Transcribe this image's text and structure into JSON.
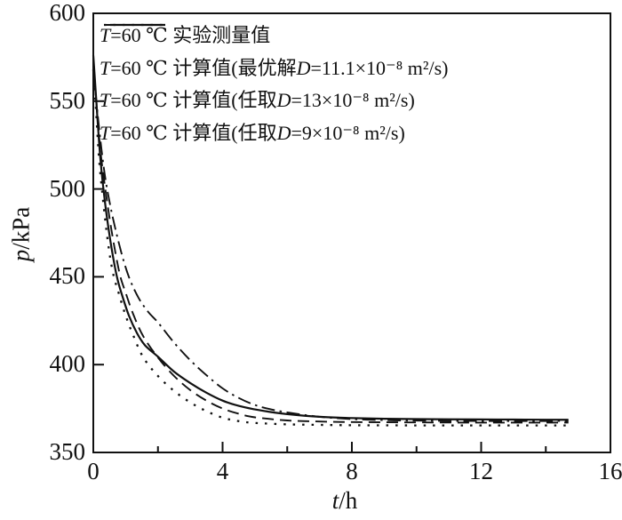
{
  "figure": {
    "background": "#ffffff",
    "line_color": "#111111"
  },
  "axes": {
    "x": {
      "symbol": "t",
      "unit": "/h"
    },
    "y": {
      "symbol": "p",
      "unit": "/kPa"
    }
  },
  "legend": [
    {
      "label": "T=60 ℃ 实验测量值",
      "line_style": "solid"
    },
    {
      "label": "T=60 ℃ 计算值(最优解D=11.1×10⁻⁸ m²/s)",
      "line_style": "dashed"
    },
    {
      "label": "T=60 ℃ 计算值(任取D=13×10⁻⁸ m²/s)",
      "line_style": "dotted"
    },
    {
      "label": "T=60 ℃ 计算值(任取D=9×10⁻⁸ m²/s)",
      "line_style": "dashdot"
    }
  ],
  "chart_data": {
    "type": "line",
    "title": "",
    "xlabel": "t/h",
    "ylabel": "p/kPa",
    "xlim": [
      0,
      16
    ],
    "ylim": [
      350,
      600
    ],
    "x_major_ticks": [
      0,
      4,
      8,
      12,
      16
    ],
    "x_minor_ticks": [
      2,
      6,
      10,
      14
    ],
    "y_major_ticks": [
      600,
      550,
      500,
      450,
      400,
      350
    ],
    "grid": false,
    "legend_position": "inside top-left",
    "series": [
      {
        "name": "T=60 ℃ 实验测量值",
        "line_style": "solid",
        "x": [
          0,
          0.07,
          0.15,
          0.25,
          0.4,
          0.55,
          0.73,
          0.9,
          1.1,
          1.35,
          1.6,
          2,
          2.5,
          3,
          3.5,
          4,
          4.5,
          5,
          5.5,
          6,
          7,
          8,
          9,
          10,
          11,
          12,
          13,
          14,
          14.7
        ],
        "y": [
          576,
          557,
          534,
          511,
          487,
          468,
          450,
          439,
          428,
          418,
          411,
          404.5,
          396,
          389.5,
          384,
          379.5,
          376.5,
          374.5,
          373,
          371.8,
          370.3,
          369.6,
          369.2,
          369,
          368.9,
          368.8,
          368.7,
          368.6,
          368.6
        ]
      },
      {
        "name": "T=60 ℃ 计算值(最优解D=11.1×10⁻⁸ m²/s)",
        "line_style": "dashed",
        "x": [
          0,
          0.1,
          0.22,
          0.35,
          0.55,
          0.8,
          1.0,
          1.25,
          1.55,
          2,
          2.5,
          3,
          3.5,
          4,
          4.5,
          5,
          6,
          7,
          8,
          10,
          12,
          14.7
        ],
        "y": [
          570,
          548,
          522,
          503,
          478,
          453,
          441,
          428,
          416,
          404,
          393.5,
          385.5,
          379.5,
          375,
          372,
          370,
          368.2,
          367.6,
          367.3,
          367.1,
          367,
          367
        ]
      },
      {
        "name": "T=60 ℃ 计算值(任取D=13×10⁻⁸ m²/s)",
        "line_style": "dotted",
        "x": [
          0,
          0.08,
          0.18,
          0.3,
          0.45,
          0.6,
          0.78,
          1.0,
          1.25,
          1.55,
          2,
          2.5,
          3,
          3.5,
          4,
          4.5,
          5,
          6,
          7,
          8,
          10,
          12,
          14.7
        ],
        "y": [
          568,
          546,
          517,
          494,
          470,
          453,
          441,
          428,
          416,
          404,
          393.5,
          385,
          378.5,
          373.5,
          369.8,
          367.8,
          366.8,
          366,
          365.7,
          365.5,
          365.4,
          365.4,
          365.4
        ]
      },
      {
        "name": "T=60 ℃ 计算值(任取D=9×10⁻⁸ m²/s)",
        "line_style": "dashdot",
        "x": [
          0,
          0.1,
          0.25,
          0.4,
          0.6,
          0.85,
          1.1,
          1.4,
          1.7,
          2,
          2.5,
          3,
          3.5,
          4,
          4.5,
          5,
          5.5,
          6,
          7,
          8,
          9,
          10,
          12,
          14.7
        ],
        "y": [
          570,
          549,
          523,
          503,
          484,
          465,
          450,
          438,
          430,
          424,
          412.5,
          402.5,
          394,
          386.5,
          381,
          377,
          374.5,
          372.8,
          370.3,
          369,
          368.4,
          368.1,
          367.9,
          367.9
        ]
      }
    ]
  }
}
